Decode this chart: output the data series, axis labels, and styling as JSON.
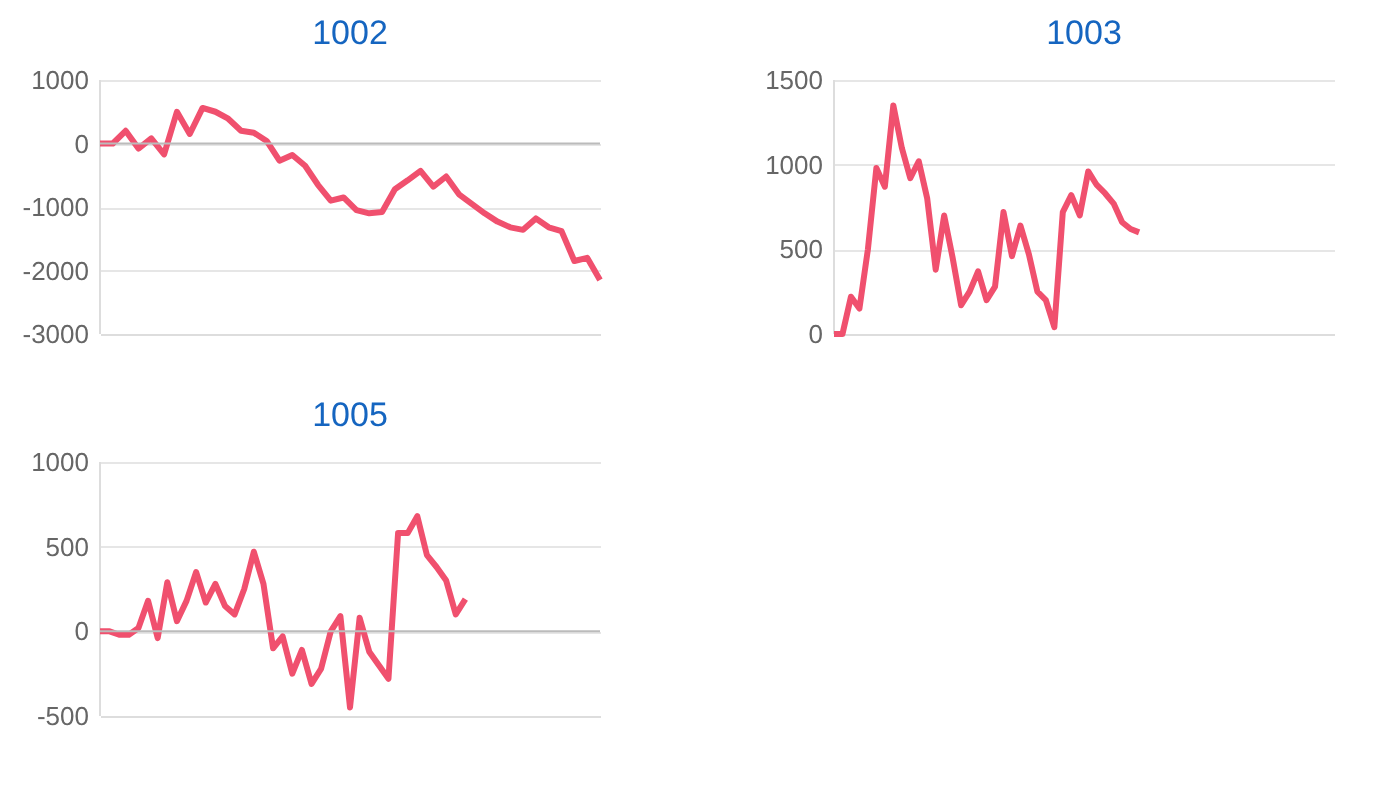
{
  "chart_data": [
    {
      "type": "line",
      "title": "1002",
      "categories": [
        null,
        null,
        null,
        null,
        null,
        null,
        null,
        null,
        null,
        null,
        null,
        null,
        null,
        null,
        null,
        null,
        null,
        null,
        null,
        null,
        null,
        null,
        null,
        null,
        null,
        null,
        null,
        null,
        null,
        null,
        null,
        null,
        null,
        null,
        null,
        null,
        null,
        null,
        null,
        null
      ],
      "series": [
        {
          "color": "#f0506e",
          "values": [
            0,
            0,
            200,
            -80,
            80,
            -170,
            500,
            150,
            560,
            500,
            390,
            200,
            170,
            40,
            -270,
            -180,
            -350,
            -650,
            -900,
            -850,
            -1050,
            -1100,
            -1080,
            -720,
            -580,
            -430,
            -680,
            -520,
            -800,
            -950,
            -1100,
            -1230,
            -1320,
            -1360,
            -1180,
            -1320,
            -1380,
            -1850,
            -1800,
            -2150
          ]
        }
      ],
      "ylim": [
        -3000,
        1000
      ],
      "yticks": [
        -3000,
        -2000,
        -1000,
        0,
        1000
      ],
      "grid": "y",
      "tick_labels": "y",
      "marker": "none",
      "line_style": "solid",
      "legend": false,
      "ref_lines": [
        {
          "axis": "y",
          "value": 0,
          "color": "#bbbbbb"
        }
      ]
    },
    {
      "type": "line",
      "title": "1003",
      "categories": [
        null,
        null,
        null,
        null,
        null,
        null,
        null,
        null,
        null,
        null,
        null,
        null,
        null,
        null,
        null,
        null,
        null,
        null,
        null,
        null,
        null,
        null,
        null,
        null,
        null,
        null,
        null,
        null,
        null,
        null,
        null,
        null,
        null,
        null,
        null,
        null,
        null,
        null,
        null,
        null,
        null,
        null,
        null,
        null,
        null,
        null,
        null,
        null,
        null,
        null,
        null,
        null,
        null,
        null,
        null,
        null,
        null,
        null,
        null,
        null
      ],
      "series": [
        {
          "color": "#f0506e",
          "values": [
            0,
            0,
            220,
            150,
            500,
            980,
            870,
            1350,
            1100,
            920,
            1020,
            800,
            380,
            700,
            450,
            170,
            250,
            370,
            200,
            280,
            720,
            460,
            640,
            470,
            250,
            200,
            40,
            720,
            820,
            700,
            960,
            880,
            830,
            770,
            660,
            620,
            600,
            null,
            null,
            null,
            null,
            null,
            null,
            null,
            null,
            null,
            null,
            null,
            null,
            null,
            null,
            null,
            null,
            null,
            null,
            null,
            null,
            null,
            null,
            null
          ]
        }
      ],
      "ylim": [
        0,
        1500
      ],
      "yticks": [
        0,
        500,
        1000,
        1500
      ],
      "grid": "y",
      "tick_labels": "y",
      "marker": "none",
      "line_style": "solid",
      "legend": false
    },
    {
      "type": "line",
      "title": "1005",
      "categories": [
        null,
        null,
        null,
        null,
        null,
        null,
        null,
        null,
        null,
        null,
        null,
        null,
        null,
        null,
        null,
        null,
        null,
        null,
        null,
        null,
        null,
        null,
        null,
        null,
        null,
        null,
        null,
        null,
        null,
        null,
        null,
        null,
        null,
        null,
        null,
        null,
        null,
        null,
        null,
        null,
        null,
        null,
        null,
        null,
        null,
        null,
        null,
        null,
        null,
        null,
        null,
        null,
        null
      ],
      "series": [
        {
          "color": "#f0506e",
          "values": [
            0,
            0,
            -20,
            -20,
            20,
            180,
            -40,
            290,
            60,
            180,
            350,
            170,
            280,
            150,
            100,
            250,
            470,
            280,
            -100,
            -30,
            -250,
            -110,
            -310,
            -220,
            0,
            90,
            -450,
            80,
            -120,
            -200,
            -280,
            580,
            580,
            680,
            450,
            380,
            300,
            100,
            190,
            null,
            null,
            null,
            null,
            null,
            null,
            null,
            null,
            null,
            null,
            null,
            null,
            null,
            null
          ]
        }
      ],
      "ylim": [
        -500,
        1000
      ],
      "yticks": [
        -500,
        0,
        500,
        1000
      ],
      "grid": "y",
      "tick_labels": "y",
      "marker": "none",
      "line_style": "solid",
      "legend": false,
      "ref_lines": [
        {
          "axis": "y",
          "value": 0,
          "color": "#bbbbbb"
        }
      ]
    }
  ]
}
